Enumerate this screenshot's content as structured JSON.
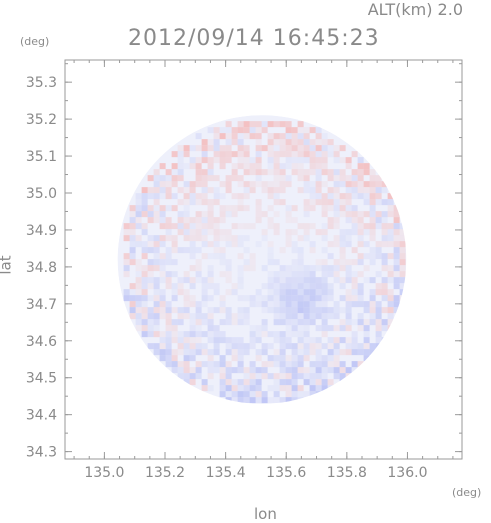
{
  "header": {
    "altitude_label": "ALT(km) 2.0",
    "timestamp": "2012/09/14 16:45:23"
  },
  "chart_data": {
    "type": "heatmap",
    "title": "2012/09/14 16:45:23",
    "subtitle": "ALT(km) 2.0",
    "xlabel": "lon",
    "ylabel": "lat",
    "x_unit": "(deg)",
    "y_unit": "(deg)",
    "xlim": [
      134.87,
      136.18
    ],
    "ylim": [
      34.28,
      35.36
    ],
    "x_ticks": [
      135.0,
      135.2,
      135.4,
      135.6,
      135.8,
      136.0
    ],
    "x_tick_labels": [
      "135.0",
      "135.2",
      "135.4",
      "135.6",
      "135.8",
      "136.0"
    ],
    "y_ticks": [
      34.3,
      34.4,
      34.5,
      34.6,
      34.7,
      34.8,
      34.9,
      35.0,
      35.1,
      35.2,
      35.3
    ],
    "y_tick_labels": [
      "34.3",
      "34.4",
      "34.5",
      "34.6",
      "34.7",
      "34.8",
      "34.9",
      "35.0",
      "35.1",
      "35.2",
      "35.3"
    ],
    "colors": {
      "positive": "#f4b8b8",
      "negative": "#b8bff4",
      "neutral": "#eef0fb",
      "frame": "#9a9a9a"
    },
    "domain_center": [
      135.52,
      34.82
    ],
    "domain_radius_deg": 0.45
  }
}
